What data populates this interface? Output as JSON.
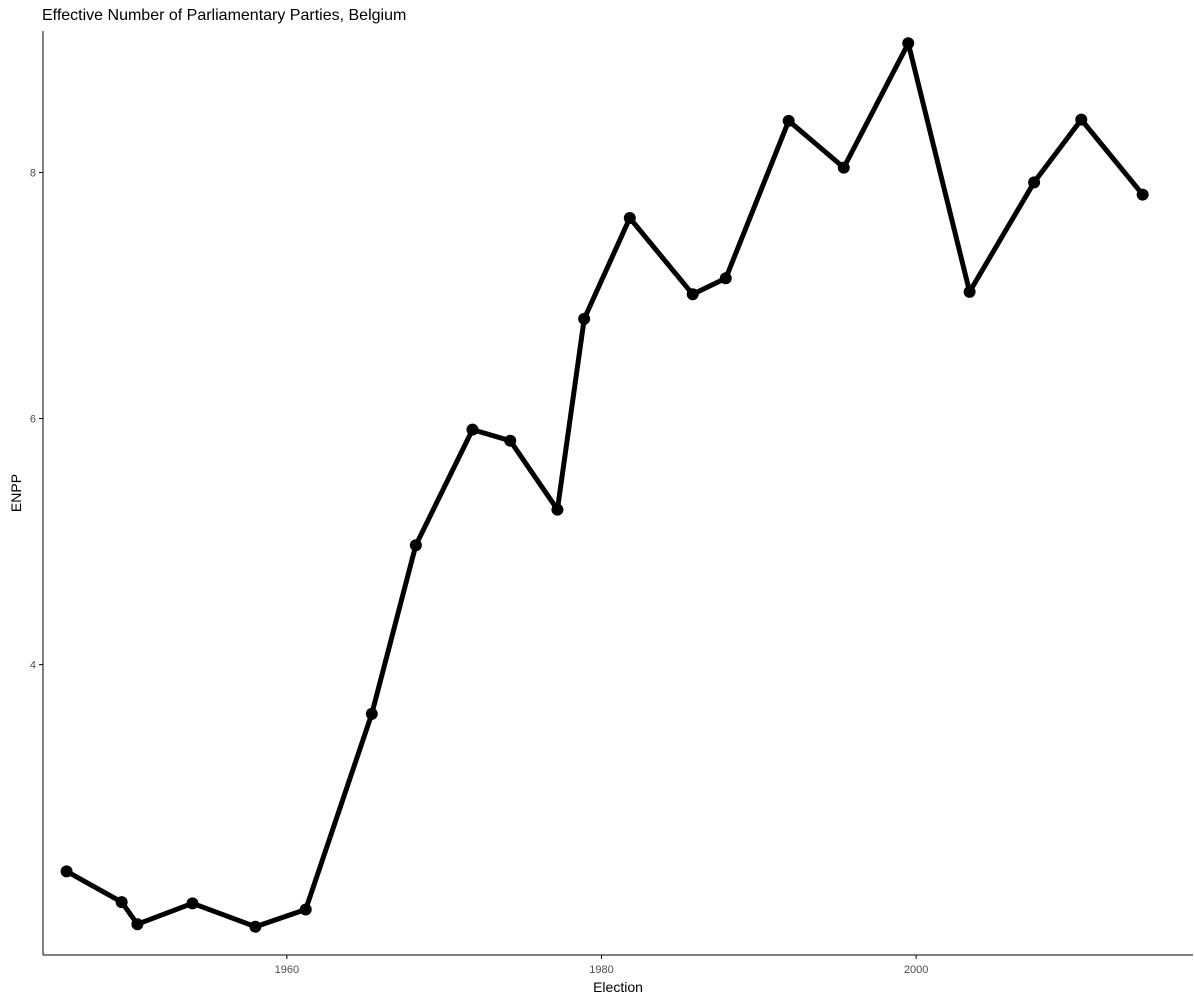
{
  "chart_data": {
    "type": "line",
    "title": "Effective Number of Parliamentary Parties, Belgium",
    "xlabel": "Election",
    "ylabel": "ENPP",
    "xlim": [
      1944.5,
      2017.6
    ],
    "ylim": [
      1.64,
      9.15
    ],
    "xticks": [
      1960,
      1980,
      2000
    ],
    "yticks": [
      4,
      6,
      8
    ],
    "grid": false,
    "legend": "none",
    "series": [
      {
        "x": [
          1946,
          1949.5,
          1950.5,
          1954,
          1958,
          1961.2,
          1965.4,
          1968.2,
          1971.8,
          1974.2,
          1977.2,
          1978.9,
          1981.8,
          1985.8,
          1987.9,
          1991.9,
          1995.4,
          1999.5,
          2003.4,
          2007.5,
          2010.5,
          2014.4
        ],
        "y": [
          2.32,
          2.07,
          1.89,
          2.06,
          1.87,
          2.01,
          3.6,
          4.97,
          5.91,
          5.82,
          5.26,
          6.81,
          7.63,
          7.01,
          7.14,
          8.42,
          8.04,
          9.05,
          7.03,
          7.92,
          8.43,
          7.82
        ]
      }
    ],
    "colors": {
      "line": "#000000",
      "point": "#000000",
      "axis": "#000000",
      "tick_label": "#4d4d4d"
    }
  }
}
